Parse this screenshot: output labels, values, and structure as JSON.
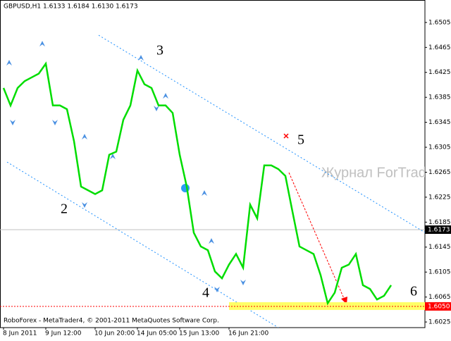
{
  "chart_data": {
    "type": "line",
    "header": "GBPUSD,H1  1.6133 1.6184 1.6130 1.6173",
    "footer": "RoboForex - MetaTrader4, © 2001-2011 MetaQuotes Software Corp.",
    "watermark": "Журнал ForTrader.ru",
    "annotations": [
      "2",
      "3",
      "4",
      "5",
      "6"
    ],
    "categories": [
      "8 Jun 2011",
      null,
      null,
      null,
      null,
      null,
      "9 Jun 12:00",
      null,
      null,
      null,
      null,
      null,
      null,
      "10 Jun 20:00",
      null,
      null,
      null,
      null,
      null,
      "14 Jun 05:00",
      null,
      null,
      null,
      null,
      null,
      "15 Jun 13:00",
      null,
      null,
      null,
      null,
      null,
      null,
      "16 Jun 21:00",
      null,
      null,
      null,
      null,
      null,
      null,
      null,
      null,
      null,
      null,
      null,
      null,
      null,
      null,
      null,
      null,
      null,
      null,
      null,
      null,
      null,
      null,
      null
    ],
    "series": [
      {
        "name": "GBPUSD",
        "color": "#00dd00",
        "values": [
          1.64,
          1.6372,
          1.64,
          1.6411,
          1.6417,
          1.6423,
          1.6439,
          1.6372,
          1.6372,
          1.6366,
          1.6315,
          1.6242,
          1.6236,
          1.623,
          1.6236,
          1.6293,
          1.6298,
          1.6349,
          1.6372,
          1.6428,
          1.6406,
          1.64,
          1.6372,
          1.6372,
          1.636,
          1.6293,
          1.6242,
          1.6168,
          1.6146,
          1.614,
          1.6106,
          1.6095,
          1.6117,
          1.6134,
          1.6112,
          1.6213,
          1.6191,
          1.6276,
          1.6276,
          1.627,
          1.6259,
          1.6202,
          1.6146,
          1.614,
          1.6134,
          1.61,
          1.6055,
          1.6072,
          1.6112,
          1.6117,
          1.6134,
          1.6084,
          1.6078,
          1.6061,
          1.6067,
          1.6084
        ]
      }
    ],
    "current_price": 1.6173,
    "target_level": {
      "value": 1.605,
      "label": "1.6050"
    },
    "ylim": [
      1.6016,
      1.6541
    ],
    "yticks": [
      1.6505,
      1.6465,
      1.6425,
      1.6385,
      1.6345,
      1.6305,
      1.6265,
      1.6225,
      1.6185,
      1.6145,
      1.6105,
      1.6065,
      1.6025
    ]
  }
}
